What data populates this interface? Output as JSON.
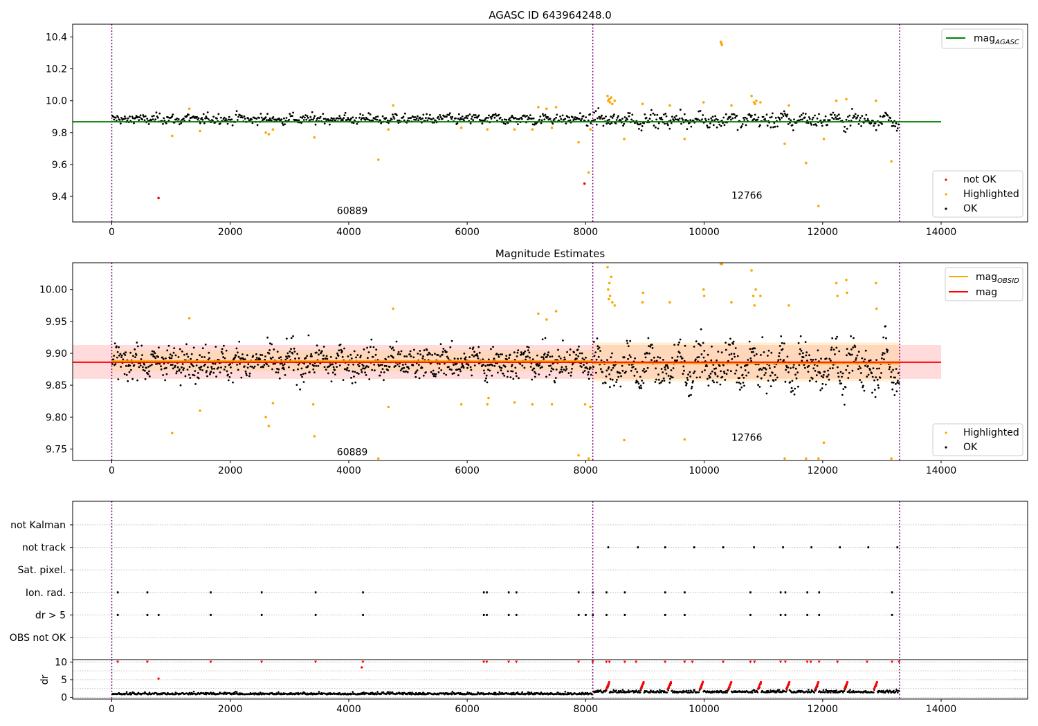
{
  "chart_data": [
    {
      "type": "scatter",
      "title": "AGASC ID 643964248.0",
      "xlim": [
        -660,
        15460
      ],
      "ylim": [
        9.24,
        10.48
      ],
      "x_ticks": [
        0,
        2000,
        4000,
        6000,
        8000,
        10000,
        12000,
        14000
      ],
      "y_ticks": [
        9.4,
        9.6,
        9.8,
        10.0,
        10.2,
        10.4
      ],
      "y_tick_labels": [
        "9.4",
        "9.6",
        "9.8",
        "10.0",
        "10.2",
        "10.4"
      ],
      "vlines": [
        0,
        8120,
        13300
      ],
      "mag_agasc": 9.868,
      "mag_agasc_span": [
        -660,
        14000
      ],
      "annotations": [
        {
          "text": "60889",
          "x": 4060,
          "y": 9.29
        },
        {
          "text": "12766",
          "x": 10720,
          "y": 9.385
        }
      ],
      "legend_upper": [
        {
          "label": "mag",
          "subscript": "AGASC",
          "color": "#008000",
          "kind": "line"
        }
      ],
      "legend_lower": [
        {
          "label": "not OK",
          "color": "#ff0000",
          "kind": "dot"
        },
        {
          "label": "Highlighted",
          "color": "#ffa500",
          "kind": "dot"
        },
        {
          "label": "OK",
          "color": "#000000",
          "kind": "dot"
        }
      ],
      "segments": [
        {
          "x": [
            0,
            8120
          ],
          "center": 9.885,
          "noise": 0.022,
          "wave": 0.012
        },
        {
          "x": [
            8120,
            13300
          ],
          "center": 9.88,
          "noise": 0.03,
          "wave": 0.03
        }
      ],
      "highlighted": [
        {
          "x": 1020,
          "y": 9.78
        },
        {
          "x": 1310,
          "y": 9.95
        },
        {
          "x": 1490,
          "y": 9.81
        },
        {
          "x": 2600,
          "y": 9.8
        },
        {
          "x": 2650,
          "y": 9.79
        },
        {
          "x": 2720,
          "y": 9.82
        },
        {
          "x": 3420,
          "y": 9.77
        },
        {
          "x": 4500,
          "y": 9.63
        },
        {
          "x": 4670,
          "y": 9.82
        },
        {
          "x": 4750,
          "y": 9.97
        },
        {
          "x": 5900,
          "y": 9.83
        },
        {
          "x": 6340,
          "y": 9.82
        },
        {
          "x": 6800,
          "y": 9.82
        },
        {
          "x": 7100,
          "y": 9.82
        },
        {
          "x": 7200,
          "y": 9.96
        },
        {
          "x": 7340,
          "y": 9.95
        },
        {
          "x": 7430,
          "y": 9.83
        },
        {
          "x": 7500,
          "y": 9.96
        },
        {
          "x": 7880,
          "y": 9.74
        },
        {
          "x": 8050,
          "y": 9.55
        },
        {
          "x": 8080,
          "y": 9.82
        },
        {
          "x": 8370,
          "y": 10.03
        },
        {
          "x": 8380,
          "y": 10.0
        },
        {
          "x": 8400,
          "y": 10.01
        },
        {
          "x": 8410,
          "y": 9.99
        },
        {
          "x": 8430,
          "y": 10.02
        },
        {
          "x": 8450,
          "y": 9.98
        },
        {
          "x": 8490,
          "y": 10.0
        },
        {
          "x": 8650,
          "y": 9.76
        },
        {
          "x": 8960,
          "y": 9.98
        },
        {
          "x": 9420,
          "y": 9.97
        },
        {
          "x": 9670,
          "y": 9.76
        },
        {
          "x": 9990,
          "y": 9.99
        },
        {
          "x": 10280,
          "y": 10.37
        },
        {
          "x": 10290,
          "y": 10.36
        },
        {
          "x": 10300,
          "y": 10.35
        },
        {
          "x": 10460,
          "y": 9.97
        },
        {
          "x": 10800,
          "y": 10.03
        },
        {
          "x": 10840,
          "y": 9.99
        },
        {
          "x": 10860,
          "y": 9.98
        },
        {
          "x": 10880,
          "y": 10.0
        },
        {
          "x": 10950,
          "y": 9.99
        },
        {
          "x": 11360,
          "y": 9.73
        },
        {
          "x": 11430,
          "y": 9.97
        },
        {
          "x": 11720,
          "y": 9.61
        },
        {
          "x": 11930,
          "y": 9.34
        },
        {
          "x": 12020,
          "y": 9.76
        },
        {
          "x": 12230,
          "y": 10.0
        },
        {
          "x": 12400,
          "y": 10.01
        },
        {
          "x": 12900,
          "y": 10.0
        },
        {
          "x": 13160,
          "y": 9.62
        }
      ],
      "not_ok": [
        {
          "x": 790,
          "y": 9.39
        },
        {
          "x": 7980,
          "y": 9.48
        }
      ]
    },
    {
      "type": "scatter",
      "title": "Magnitude Estimates",
      "xlim": [
        -660,
        15460
      ],
      "ylim": [
        9.732,
        10.042
      ],
      "x_ticks": [
        0,
        2000,
        4000,
        6000,
        8000,
        10000,
        12000,
        14000
      ],
      "y_ticks": [
        9.75,
        9.8,
        9.85,
        9.9,
        9.95,
        10.0
      ],
      "y_tick_labels": [
        "9.75",
        "9.80",
        "9.85",
        "9.90",
        "9.95",
        "10.00"
      ],
      "vlines": [
        0,
        8120,
        13300
      ],
      "mag": 9.886,
      "mag_band": [
        9.86,
        9.913
      ],
      "mag_span": [
        -660,
        14000
      ],
      "mag_obsid": [
        {
          "x": [
            0,
            8120
          ],
          "y": 9.888,
          "band": [
            9.872,
            9.905
          ]
        },
        {
          "x": [
            8120,
            13300
          ],
          "y": 9.884,
          "band": [
            9.856,
            9.917
          ]
        }
      ],
      "annotations": [
        {
          "text": "60889",
          "x": 4060,
          "y": 9.74
        },
        {
          "text": "12766",
          "x": 10720,
          "y": 9.763
        }
      ],
      "legend_upper": [
        {
          "label": "mag",
          "subscript": "OBSID",
          "color": "#ffa500",
          "kind": "line"
        },
        {
          "label": "mag",
          "subscript": "",
          "color": "#ff0000",
          "kind": "line"
        }
      ],
      "legend_lower": [
        {
          "label": "Highlighted",
          "color": "#ffa500",
          "kind": "dot"
        },
        {
          "label": "OK",
          "color": "#000000",
          "kind": "dot"
        }
      ],
      "segments": [
        {
          "x": [
            0,
            8120
          ],
          "center": 9.886,
          "noise": 0.018,
          "wave": 0.012
        },
        {
          "x": [
            8120,
            13300
          ],
          "center": 9.88,
          "noise": 0.022,
          "wave": 0.03
        }
      ],
      "highlighted": [
        {
          "x": 1020,
          "y": 9.775
        },
        {
          "x": 1310,
          "y": 9.955
        },
        {
          "x": 1490,
          "y": 9.81
        },
        {
          "x": 2600,
          "y": 9.8
        },
        {
          "x": 2650,
          "y": 9.786
        },
        {
          "x": 2720,
          "y": 9.822
        },
        {
          "x": 3400,
          "y": 9.82
        },
        {
          "x": 3420,
          "y": 9.77
        },
        {
          "x": 4500,
          "y": 9.735
        },
        {
          "x": 4670,
          "y": 9.816
        },
        {
          "x": 4750,
          "y": 9.97
        },
        {
          "x": 5900,
          "y": 9.82
        },
        {
          "x": 6340,
          "y": 9.82
        },
        {
          "x": 6360,
          "y": 9.83
        },
        {
          "x": 6800,
          "y": 9.823
        },
        {
          "x": 7100,
          "y": 9.82
        },
        {
          "x": 7200,
          "y": 9.962
        },
        {
          "x": 7340,
          "y": 9.953
        },
        {
          "x": 7430,
          "y": 9.82
        },
        {
          "x": 7500,
          "y": 9.966
        },
        {
          "x": 7880,
          "y": 9.74
        },
        {
          "x": 7990,
          "y": 9.82
        },
        {
          "x": 8050,
          "y": 9.735
        },
        {
          "x": 8080,
          "y": 9.816
        },
        {
          "x": 8370,
          "y": 10.035
        },
        {
          "x": 8380,
          "y": 10.0
        },
        {
          "x": 8390,
          "y": 9.985
        },
        {
          "x": 8400,
          "y": 10.01
        },
        {
          "x": 8410,
          "y": 9.99
        },
        {
          "x": 8430,
          "y": 10.02
        },
        {
          "x": 8450,
          "y": 9.98
        },
        {
          "x": 8490,
          "y": 9.975
        },
        {
          "x": 8650,
          "y": 9.764
        },
        {
          "x": 8960,
          "y": 9.98
        },
        {
          "x": 8970,
          "y": 9.995
        },
        {
          "x": 9420,
          "y": 9.98
        },
        {
          "x": 9670,
          "y": 9.765
        },
        {
          "x": 9990,
          "y": 10.0
        },
        {
          "x": 10000,
          "y": 9.99
        },
        {
          "x": 10280,
          "y": 10.04
        },
        {
          "x": 10300,
          "y": 10.04
        },
        {
          "x": 10460,
          "y": 9.98
        },
        {
          "x": 10800,
          "y": 10.03
        },
        {
          "x": 10830,
          "y": 9.99
        },
        {
          "x": 10850,
          "y": 9.975
        },
        {
          "x": 10870,
          "y": 10.0
        },
        {
          "x": 10950,
          "y": 9.99
        },
        {
          "x": 11360,
          "y": 9.735
        },
        {
          "x": 11430,
          "y": 9.975
        },
        {
          "x": 11720,
          "y": 9.735
        },
        {
          "x": 11930,
          "y": 9.735
        },
        {
          "x": 12020,
          "y": 9.76
        },
        {
          "x": 12230,
          "y": 10.01
        },
        {
          "x": 12250,
          "y": 9.99
        },
        {
          "x": 12400,
          "y": 10.015
        },
        {
          "x": 12410,
          "y": 9.995
        },
        {
          "x": 12900,
          "y": 10.01
        },
        {
          "x": 12910,
          "y": 9.97
        },
        {
          "x": 13160,
          "y": 9.735
        }
      ]
    },
    {
      "type": "scatter",
      "title": "",
      "xlim": [
        -660,
        15460
      ],
      "categories": [
        "not Kalman",
        "not track",
        "Sat. pixel.",
        "Ion. rad.",
        "dr > 5",
        "OBS not OK"
      ],
      "vlines": [
        0,
        8120,
        13300
      ],
      "flags": {
        "not Kalman": [],
        "not track": [
          8380,
          8880,
          9340,
          9830,
          10320,
          10840,
          11330,
          11810,
          12290,
          12770,
          13260
        ],
        "Sat. pixel.": [],
        "Ion. rad.": [
          100,
          600,
          1670,
          2530,
          3440,
          4240,
          6280,
          6330,
          6700,
          6830,
          7880,
          8120,
          8350,
          8660,
          9340,
          9670,
          10780,
          11290,
          11370,
          11740,
          11940,
          13170
        ],
        "dr > 5": [
          100,
          600,
          790,
          1670,
          2530,
          3440,
          4240,
          6280,
          6330,
          6700,
          6830,
          7880,
          8000,
          8120,
          8350,
          8660,
          9340,
          9670,
          10780,
          11290,
          11370,
          11740,
          11940,
          13170
        ],
        "OBS not OK": []
      }
    },
    {
      "type": "scatter",
      "title": "",
      "xlim": [
        -660,
        15460
      ],
      "ylim": [
        -0.5,
        10.7
      ],
      "ylabel": "dr",
      "x_ticks": [
        0,
        2000,
        4000,
        6000,
        8000,
        10000,
        12000,
        14000
      ],
      "y_ticks": [
        0,
        5,
        10
      ],
      "y_tick_labels": [
        "0",
        "5",
        "10"
      ],
      "vlines": [
        0,
        8120,
        13300
      ],
      "red_capped": [
        100,
        600,
        1670,
        2530,
        3440,
        4240,
        6280,
        6330,
        6700,
        6830,
        7880,
        8120,
        8350,
        8400,
        8660,
        8850,
        9340,
        9670,
        9800,
        10320,
        10780,
        10850,
        11290,
        11370,
        11740,
        11800,
        11940,
        12250,
        12750,
        13170,
        13290
      ],
      "red_low": [
        {
          "x": 790,
          "y": 5.3
        },
        {
          "x": 4220,
          "y": 8.5
        }
      ],
      "segments": [
        {
          "x": [
            0,
            8120
          ],
          "base": 0.8,
          "noise": 0.4
        },
        {
          "x": [
            8120,
            13300
          ],
          "base": 1.3,
          "noise": 0.5
        }
      ],
      "bumps": [
        8400,
        8980,
        9440,
        9980,
        10460,
        10960,
        11440,
        11930,
        12420,
        12920
      ]
    }
  ],
  "colors": {
    "ok": "#000000",
    "highlighted": "#ffa500",
    "not_ok": "#ff0000",
    "agasc_line": "#008000",
    "mag_line": "#ff0000",
    "obsid_line": "#ffa500",
    "vline": "#800080",
    "band_red": "#ffb0b0",
    "band_orange": "#ffd080"
  }
}
